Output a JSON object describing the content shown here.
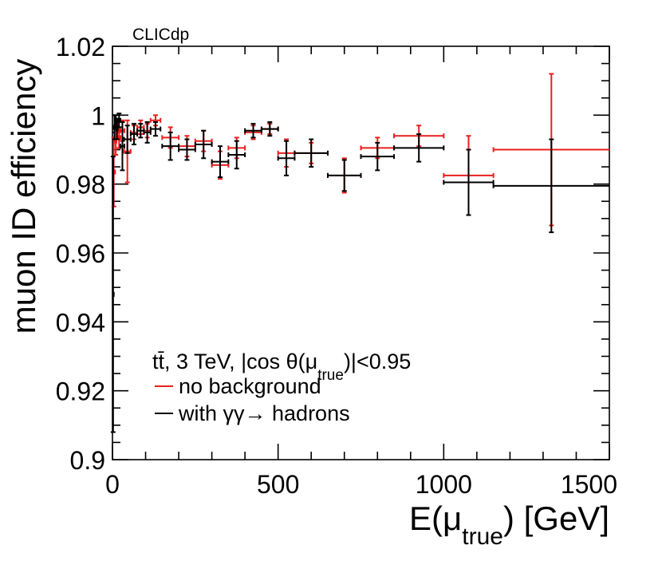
{
  "chart_data": {
    "type": "scatter",
    "label": "CLICdp",
    "title": "",
    "xlabel": "E(μ_true) [GeV]",
    "xlabel_parts": {
      "main": "E(μ",
      "sub": "true",
      "tail": ") [GeV]"
    },
    "ylabel": "muon ID efficiency",
    "xlim": [
      0,
      1500
    ],
    "ylim": [
      0.9,
      1.02
    ],
    "x_ticks": [
      "0",
      "500",
      "1000",
      "1500"
    ],
    "y_ticks": [
      "0.9",
      "0.92",
      "0.94",
      "0.96",
      "0.98",
      "1",
      "1.02"
    ],
    "legend": {
      "header": "tt̄, 3 TeV, |cos θ(μtrue)|<0.95",
      "header_parts": {
        "main": "tt̄, 3 TeV, |cos θ(μ",
        "sub": "true",
        "tail": ")|<0.95"
      },
      "entries": [
        "no background",
        "with γγ→ hadrons"
      ]
    },
    "series": [
      {
        "name": "no background",
        "color": "#e8201e",
        "points": [
          {
            "x": 4,
            "xerr": 4,
            "y": 0.9835,
            "yerr": 0.01
          },
          {
            "x": 10,
            "xerr": 2,
            "y": 0.9925,
            "yerr": 0.004
          },
          {
            "x": 14,
            "xerr": 2,
            "y": 0.997,
            "yerr": 0.002
          },
          {
            "x": 20,
            "xerr": 4,
            "y": 0.9935,
            "yerr": 0.003
          },
          {
            "x": 30,
            "xerr": 6,
            "y": 0.9955,
            "yerr": 0.003
          },
          {
            "x": 45,
            "xerr": 10,
            "y": 0.9895,
            "yerr": 0.009
          },
          {
            "x": 65,
            "xerr": 10,
            "y": 0.995,
            "yerr": 0.002
          },
          {
            "x": 85,
            "xerr": 10,
            "y": 0.9965,
            "yerr": 0.002
          },
          {
            "x": 105,
            "xerr": 10,
            "y": 0.9955,
            "yerr": 0.002
          },
          {
            "x": 130,
            "xerr": 15,
            "y": 0.9985,
            "yerr": 0.0015
          },
          {
            "x": 175,
            "xerr": 25,
            "y": 0.9935,
            "yerr": 0.003
          },
          {
            "x": 225,
            "xerr": 25,
            "y": 0.991,
            "yerr": 0.003
          },
          {
            "x": 275,
            "xerr": 25,
            "y": 0.9925,
            "yerr": 0.003
          },
          {
            "x": 325,
            "xerr": 25,
            "y": 0.9855,
            "yerr": 0.004
          },
          {
            "x": 375,
            "xerr": 25,
            "y": 0.9905,
            "yerr": 0.003
          },
          {
            "x": 425,
            "xerr": 25,
            "y": 0.995,
            "yerr": 0.002
          },
          {
            "x": 475,
            "xerr": 25,
            "y": 0.996,
            "yerr": 0.0015
          },
          {
            "x": 525,
            "xerr": 25,
            "y": 0.989,
            "yerr": 0.004
          },
          {
            "x": 600,
            "xerr": 50,
            "y": 0.989,
            "yerr": 0.003
          },
          {
            "x": 700,
            "xerr": 50,
            "y": 0.9825,
            "yerr": 0.005
          },
          {
            "x": 800,
            "xerr": 50,
            "y": 0.9905,
            "yerr": 0.003
          },
          {
            "x": 925,
            "xerr": 75,
            "y": 0.994,
            "yerr": 0.003
          },
          {
            "x": 1075,
            "xerr": 75,
            "y": 0.9825,
            "yerr": 0.0115
          },
          {
            "x": 1325,
            "xerr": 175,
            "y": 0.99,
            "yerr": 0.022
          }
        ]
      },
      {
        "name": "with γγ→ hadrons",
        "color": "#000000",
        "points": [
          {
            "x": 2,
            "xerr": 2,
            "y": 0.948,
            "yerr": 0.04
          },
          {
            "x": 6,
            "xerr": 2,
            "y": 0.9965,
            "yerr": 0.0035
          },
          {
            "x": 10,
            "xerr": 2,
            "y": 0.998,
            "yerr": 0.002
          },
          {
            "x": 14,
            "xerr": 2,
            "y": 0.996,
            "yerr": 0.003
          },
          {
            "x": 20,
            "xerr": 4,
            "y": 0.9985,
            "yerr": 0.002
          },
          {
            "x": 30,
            "xerr": 6,
            "y": 0.991,
            "yerr": 0.007
          },
          {
            "x": 45,
            "xerr": 10,
            "y": 0.993,
            "yerr": 0.004
          },
          {
            "x": 65,
            "xerr": 10,
            "y": 0.9945,
            "yerr": 0.003
          },
          {
            "x": 85,
            "xerr": 10,
            "y": 0.9955,
            "yerr": 0.002
          },
          {
            "x": 105,
            "xerr": 10,
            "y": 0.995,
            "yerr": 0.003
          },
          {
            "x": 130,
            "xerr": 15,
            "y": 0.996,
            "yerr": 0.002
          },
          {
            "x": 175,
            "xerr": 25,
            "y": 0.991,
            "yerr": 0.004
          },
          {
            "x": 225,
            "xerr": 25,
            "y": 0.99,
            "yerr": 0.003
          },
          {
            "x": 275,
            "xerr": 25,
            "y": 0.9915,
            "yerr": 0.004
          },
          {
            "x": 325,
            "xerr": 25,
            "y": 0.9865,
            "yerr": 0.0045
          },
          {
            "x": 375,
            "xerr": 25,
            "y": 0.9885,
            "yerr": 0.004
          },
          {
            "x": 425,
            "xerr": 25,
            "y": 0.9955,
            "yerr": 0.002
          },
          {
            "x": 475,
            "xerr": 25,
            "y": 0.996,
            "yerr": 0.002
          },
          {
            "x": 525,
            "xerr": 25,
            "y": 0.9875,
            "yerr": 0.005
          },
          {
            "x": 600,
            "xerr": 50,
            "y": 0.989,
            "yerr": 0.004
          },
          {
            "x": 700,
            "xerr": 50,
            "y": 0.9825,
            "yerr": 0.0045
          },
          {
            "x": 800,
            "xerr": 50,
            "y": 0.988,
            "yerr": 0.004
          },
          {
            "x": 925,
            "xerr": 75,
            "y": 0.9905,
            "yerr": 0.004
          },
          {
            "x": 1075,
            "xerr": 75,
            "y": 0.9805,
            "yerr": 0.0095
          },
          {
            "x": 1325,
            "xerr": 175,
            "y": 0.9795,
            "yerr": 0.0135
          }
        ]
      }
    ]
  }
}
